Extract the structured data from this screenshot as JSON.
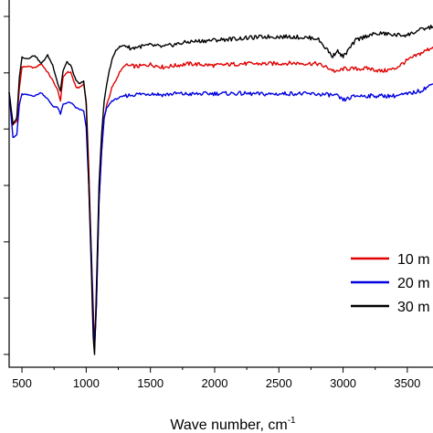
{
  "chart_data": {
    "type": "line",
    "xlabel": "Wave number, cm",
    "xlabel_superscript": "-1",
    "xlim": [
      400,
      3700
    ],
    "ylim": [
      0,
      1
    ],
    "x_ticks": [
      500,
      1000,
      1500,
      2000,
      2500,
      3000,
      3500
    ],
    "x_tick_labels": [
      "500",
      "1000",
      "1500",
      "2000",
      "2500",
      "3000",
      "3500"
    ],
    "y_ticks": [
      0.0,
      0.167,
      0.333,
      0.5,
      0.667,
      0.833,
      1.0
    ],
    "legend_position": "bottom-right",
    "series": [
      {
        "name": "10 m",
        "color": "#e00000",
        "x": [
          400,
          430,
          460,
          480,
          500,
          540,
          600,
          650,
          700,
          740,
          780,
          800,
          820,
          850,
          880,
          920,
          950,
          980,
          1000,
          1020,
          1040,
          1060,
          1070,
          1080,
          1100,
          1120,
          1140,
          1160,
          1180,
          1200,
          1230,
          1260,
          1300,
          1400,
          1500,
          1600,
          1700,
          1800,
          2000,
          2200,
          2400,
          2600,
          2800,
          2900,
          2950,
          3000,
          3100,
          3200,
          3300,
          3400,
          3500,
          3600,
          3700
        ],
        "y": [
          0.776,
          0.68,
          0.69,
          0.79,
          0.85,
          0.852,
          0.848,
          0.86,
          0.835,
          0.81,
          0.78,
          0.75,
          0.82,
          0.835,
          0.835,
          0.79,
          0.79,
          0.8,
          0.75,
          0.55,
          0.3,
          0.08,
          0.06,
          0.15,
          0.45,
          0.6,
          0.7,
          0.74,
          0.76,
          0.79,
          0.81,
          0.835,
          0.855,
          0.852,
          0.858,
          0.85,
          0.855,
          0.86,
          0.855,
          0.86,
          0.86,
          0.862,
          0.86,
          0.845,
          0.835,
          0.845,
          0.845,
          0.846,
          0.838,
          0.845,
          0.87,
          0.89,
          0.91
        ]
      },
      {
        "name": "20 m",
        "color": "#0000e0",
        "x": [
          400,
          430,
          460,
          480,
          500,
          540,
          600,
          650,
          700,
          740,
          780,
          800,
          820,
          850,
          880,
          920,
          950,
          980,
          1000,
          1020,
          1040,
          1055,
          1065,
          1080,
          1100,
          1120,
          1140,
          1160,
          1180,
          1200,
          1230,
          1260,
          1300,
          1400,
          1500,
          1600,
          1700,
          1800,
          2000,
          2200,
          2400,
          2600,
          2800,
          2900,
          2950,
          3000,
          3100,
          3200,
          3300,
          3400,
          3500,
          3600,
          3700
        ],
        "y": [
          0.776,
          0.64,
          0.65,
          0.74,
          0.77,
          0.768,
          0.765,
          0.775,
          0.755,
          0.735,
          0.73,
          0.71,
          0.74,
          0.745,
          0.745,
          0.73,
          0.725,
          0.72,
          0.67,
          0.5,
          0.3,
          0.1,
          0.02,
          0.15,
          0.45,
          0.6,
          0.7,
          0.73,
          0.74,
          0.75,
          0.755,
          0.76,
          0.765,
          0.77,
          0.772,
          0.768,
          0.772,
          0.77,
          0.772,
          0.772,
          0.77,
          0.772,
          0.77,
          0.768,
          0.765,
          0.752,
          0.765,
          0.765,
          0.765,
          0.765,
          0.77,
          0.78,
          0.8
        ]
      },
      {
        "name": "30 m",
        "color": "#000000",
        "x": [
          400,
          430,
          460,
          480,
          500,
          540,
          600,
          650,
          700,
          740,
          780,
          800,
          820,
          850,
          880,
          920,
          950,
          980,
          1000,
          1020,
          1040,
          1055,
          1065,
          1080,
          1100,
          1120,
          1140,
          1160,
          1180,
          1200,
          1230,
          1260,
          1300,
          1350,
          1400,
          1500,
          1600,
          1700,
          1800,
          2000,
          2200,
          2400,
          2600,
          2800,
          2880,
          2920,
          2950,
          3000,
          3100,
          3200,
          3300,
          3400,
          3500,
          3600,
          3700
        ],
        "y": [
          0.776,
          0.68,
          0.7,
          0.82,
          0.88,
          0.875,
          0.885,
          0.86,
          0.885,
          0.855,
          0.8,
          0.78,
          0.84,
          0.865,
          0.855,
          0.81,
          0.8,
          0.81,
          0.74,
          0.5,
          0.25,
          0.05,
          0.0,
          0.2,
          0.5,
          0.65,
          0.75,
          0.8,
          0.84,
          0.87,
          0.9,
          0.91,
          0.915,
          0.905,
          0.91,
          0.915,
          0.91,
          0.918,
          0.925,
          0.93,
          0.935,
          0.94,
          0.94,
          0.935,
          0.9,
          0.88,
          0.9,
          0.88,
          0.93,
          0.945,
          0.95,
          0.945,
          0.945,
          0.96,
          0.97
        ]
      }
    ]
  }
}
